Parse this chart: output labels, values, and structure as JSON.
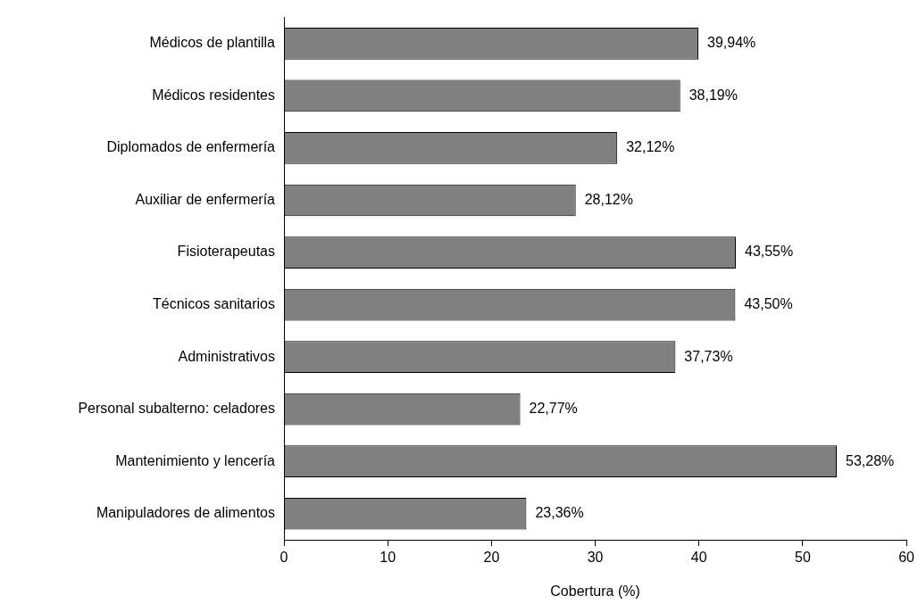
{
  "chart_data": {
    "type": "bar",
    "orientation": "horizontal",
    "xlabel": "Cobertura (%)",
    "categories": [
      "Médicos de plantilla",
      "Médicos residentes",
      "Diplomados de enfermería",
      "Auxiliar de enfermería",
      "Fisioterapeutas",
      "Técnicos sanitarios",
      "Administrativos",
      "Personal subalterno: celadores",
      "Mantenimiento y lencería",
      "Manipuladores de alimentos"
    ],
    "values": [
      39.94,
      38.19,
      32.12,
      28.12,
      43.55,
      43.5,
      37.73,
      22.77,
      53.28,
      23.36
    ],
    "value_labels": [
      "39,94%",
      "38,19%",
      "32,12%",
      "28,12%",
      "43,55%",
      "43,50%",
      "37,73%",
      "22,77%",
      "53,28%",
      "23,36%"
    ],
    "color": "#808080",
    "xlim": [
      0,
      60
    ],
    "xticks": [
      0,
      10,
      20,
      30,
      40,
      50,
      60
    ],
    "grid": false,
    "legend": false
  }
}
